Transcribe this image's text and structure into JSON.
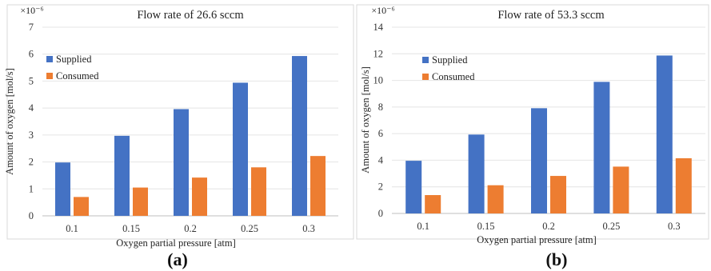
{
  "chart_data": [
    {
      "type": "bar",
      "title": "Flow rate of 26.6 sccm",
      "xlabel": "Oxygen partial pressure [atm]",
      "ylabel": "Amount of oxygen [mol/s]",
      "multiplier": "×10⁻⁶",
      "panel_label": "(a)",
      "categories": [
        "0.1",
        "0.15",
        "0.2",
        "0.25",
        "0.3"
      ],
      "ylim": [
        0,
        7
      ],
      "yticks": [
        0,
        1,
        2,
        3,
        4,
        5,
        6,
        7
      ],
      "legend_position": "top-left",
      "grid": true,
      "series": [
        {
          "name": "Supplied",
          "color": "#4472C4",
          "values": [
            1.98,
            2.97,
            3.96,
            4.94,
            5.93
          ]
        },
        {
          "name": "Consumed",
          "color": "#ED7D31",
          "values": [
            0.7,
            1.05,
            1.42,
            1.8,
            2.22
          ]
        }
      ]
    },
    {
      "type": "bar",
      "title": "Flow rate of 53.3 sccm",
      "xlabel": "Oxygen partial pressure [atm]",
      "ylabel": "Amount of oxygen [mol/s]",
      "multiplier": "×10⁻⁶",
      "panel_label": "(b)",
      "categories": [
        "0.1",
        "0.15",
        "0.2",
        "0.25",
        "0.3"
      ],
      "ylim": [
        0,
        14
      ],
      "yticks": [
        0,
        2,
        4,
        6,
        8,
        10,
        12,
        14
      ],
      "legend_position": "top-left",
      "grid": true,
      "series": [
        {
          "name": "Supplied",
          "color": "#4472C4",
          "values": [
            3.96,
            5.93,
            7.91,
            9.89,
            11.87
          ]
        },
        {
          "name": "Consumed",
          "color": "#ED7D31",
          "values": [
            1.38,
            2.12,
            2.82,
            3.52,
            4.15
          ]
        }
      ]
    }
  ]
}
